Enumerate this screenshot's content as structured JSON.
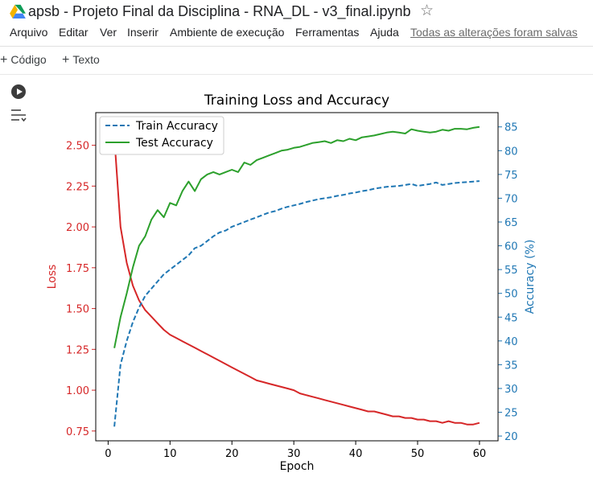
{
  "window": {
    "title": "apsb - Projeto Final da Disciplina - RNA_DL - v3_final.ipynb"
  },
  "icons": {
    "drive": "google-drive-icon",
    "star": "star-icon",
    "run": "play-icon",
    "output": "output-toggle-icon"
  },
  "menu": {
    "items": [
      "Arquivo",
      "Editar",
      "Ver",
      "Inserir",
      "Ambiente de execução",
      "Ferramentas",
      "Ajuda"
    ],
    "save_status": "Todas as alterações foram salvas"
  },
  "toolbar": {
    "code_label": "Código",
    "text_label": "Texto"
  },
  "colors": {
    "loss": "#d62728",
    "train": "#1f77b4",
    "test": "#2ca02c"
  },
  "chart_data": {
    "type": "line",
    "title": "Training Loss and Accuracy",
    "xlabel": "Epoch",
    "ylabel": "Loss",
    "y2label": "Accuracy (%)",
    "xlim": [
      -2,
      63
    ],
    "ylim": [
      0.69,
      2.7
    ],
    "y2lim": [
      19,
      88
    ],
    "xticks": [
      0,
      10,
      20,
      30,
      40,
      50,
      60
    ],
    "yticks": [
      0.75,
      1.0,
      1.25,
      1.5,
      1.75,
      2.0,
      2.25,
      2.5
    ],
    "ytick_labels": [
      "0.75",
      "1.00",
      "1.25",
      "1.50",
      "1.75",
      "2.00",
      "2.25",
      "2.50"
    ],
    "y2ticks": [
      20,
      25,
      30,
      35,
      40,
      45,
      50,
      55,
      60,
      65,
      70,
      75,
      80,
      85
    ],
    "legend": {
      "position": "top-left",
      "entries": [
        "Train Accuracy",
        "Test Accuracy"
      ]
    },
    "x": [
      1,
      2,
      3,
      4,
      5,
      6,
      7,
      8,
      9,
      10,
      11,
      12,
      13,
      14,
      15,
      16,
      17,
      18,
      19,
      20,
      21,
      22,
      23,
      24,
      25,
      26,
      27,
      28,
      29,
      30,
      31,
      32,
      33,
      34,
      35,
      36,
      37,
      38,
      39,
      40,
      41,
      42,
      43,
      44,
      45,
      46,
      47,
      48,
      49,
      50,
      51,
      52,
      53,
      54,
      55,
      56,
      57,
      58,
      59,
      60
    ],
    "series": [
      {
        "axis": "left",
        "style": "solid",
        "color": "#d62728",
        "values": [
          2.55,
          2.0,
          1.78,
          1.64,
          1.55,
          1.49,
          1.45,
          1.41,
          1.37,
          1.34,
          1.32,
          1.3,
          1.28,
          1.26,
          1.24,
          1.22,
          1.2,
          1.18,
          1.16,
          1.14,
          1.12,
          1.1,
          1.08,
          1.06,
          1.05,
          1.04,
          1.03,
          1.02,
          1.01,
          1.0,
          0.98,
          0.97,
          0.96,
          0.95,
          0.94,
          0.93,
          0.92,
          0.91,
          0.9,
          0.89,
          0.88,
          0.87,
          0.87,
          0.86,
          0.85,
          0.84,
          0.84,
          0.83,
          0.83,
          0.82,
          0.82,
          0.81,
          0.81,
          0.8,
          0.81,
          0.8,
          0.8,
          0.79,
          0.79,
          0.8
        ]
      },
      {
        "name": "Train Accuracy",
        "axis": "right",
        "style": "dashed",
        "color": "#1f77b4",
        "values": [
          22.0,
          35.0,
          40.0,
          44.0,
          47.0,
          49.5,
          51.0,
          52.5,
          54.0,
          55.0,
          56.0,
          57.0,
          58.0,
          59.5,
          60.0,
          61.0,
          62.0,
          62.8,
          63.2,
          64.0,
          64.5,
          65.0,
          65.5,
          66.0,
          66.5,
          67.0,
          67.3,
          67.8,
          68.2,
          68.5,
          68.8,
          69.2,
          69.5,
          69.8,
          70.0,
          70.2,
          70.5,
          70.7,
          71.0,
          71.2,
          71.5,
          71.7,
          72.0,
          72.2,
          72.4,
          72.5,
          72.6,
          72.8,
          73.0,
          72.6,
          72.8,
          73.0,
          73.3,
          72.8,
          73.0,
          73.2,
          73.3,
          73.4,
          73.5,
          73.6
        ]
      },
      {
        "name": "Test Accuracy",
        "axis": "right",
        "style": "solid",
        "color": "#2ca02c",
        "values": [
          38.5,
          45.0,
          50.0,
          55.5,
          60.0,
          62.0,
          65.5,
          67.5,
          66.0,
          69.0,
          68.5,
          71.5,
          73.5,
          71.5,
          74.0,
          75.0,
          75.5,
          75.0,
          75.5,
          76.0,
          75.5,
          77.5,
          77.0,
          78.0,
          78.5,
          79.0,
          79.5,
          80.0,
          80.2,
          80.6,
          80.8,
          81.2,
          81.6,
          81.8,
          82.0,
          81.6,
          82.2,
          82.0,
          82.5,
          82.2,
          82.8,
          83.0,
          83.2,
          83.5,
          83.8,
          84.0,
          83.8,
          83.6,
          84.5,
          84.2,
          84.0,
          83.8,
          84.0,
          84.4,
          84.2,
          84.6,
          84.6,
          84.5,
          84.8,
          85.0
        ]
      }
    ]
  }
}
